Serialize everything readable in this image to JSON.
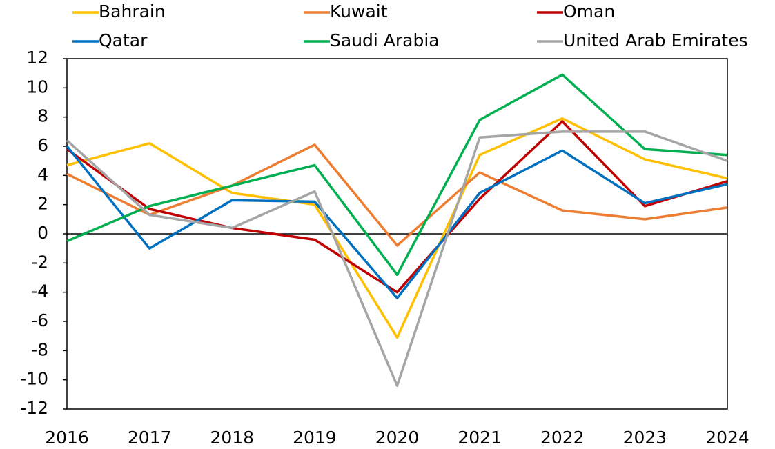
{
  "chart_data": {
    "type": "line",
    "categories": [
      "2016",
      "2017",
      "2018",
      "2019",
      "2020",
      "2021",
      "2022",
      "2023",
      "2024"
    ],
    "series": [
      {
        "name": "Bahrain",
        "color": "#ffc000",
        "values": [
          4.7,
          6.2,
          2.8,
          2.0,
          -7.1,
          5.4,
          7.9,
          5.1,
          3.8
        ]
      },
      {
        "name": "Kuwait",
        "color": "#ed7d31",
        "values": [
          4.1,
          1.3,
          3.3,
          6.1,
          -0.8,
          4.2,
          1.6,
          1.0,
          1.8
        ]
      },
      {
        "name": "Oman",
        "color": "#c00000",
        "values": [
          5.8,
          1.7,
          0.4,
          -0.4,
          -4.0,
          2.4,
          7.7,
          1.9,
          3.6
        ]
      },
      {
        "name": "Qatar",
        "color": "#0070c0",
        "values": [
          6.0,
          -1.0,
          2.3,
          2.2,
          -4.4,
          2.8,
          5.7,
          2.1,
          3.4
        ]
      },
      {
        "name": "Saudi Arabia",
        "color": "#00b050",
        "values": [
          -0.5,
          1.9,
          3.3,
          4.7,
          -2.8,
          7.8,
          10.9,
          5.8,
          5.4
        ]
      },
      {
        "name": "United Arab Emirates",
        "color": "#a5a5a5",
        "values": [
          6.4,
          1.3,
          0.4,
          2.9,
          -10.4,
          6.6,
          7.0,
          7.0,
          5.0
        ]
      }
    ],
    "ylim": [
      -12,
      12
    ],
    "yticks": [
      -12,
      -10,
      -8,
      -6,
      -4,
      -2,
      0,
      2,
      4,
      6,
      8,
      10,
      12
    ],
    "grid": false
  }
}
